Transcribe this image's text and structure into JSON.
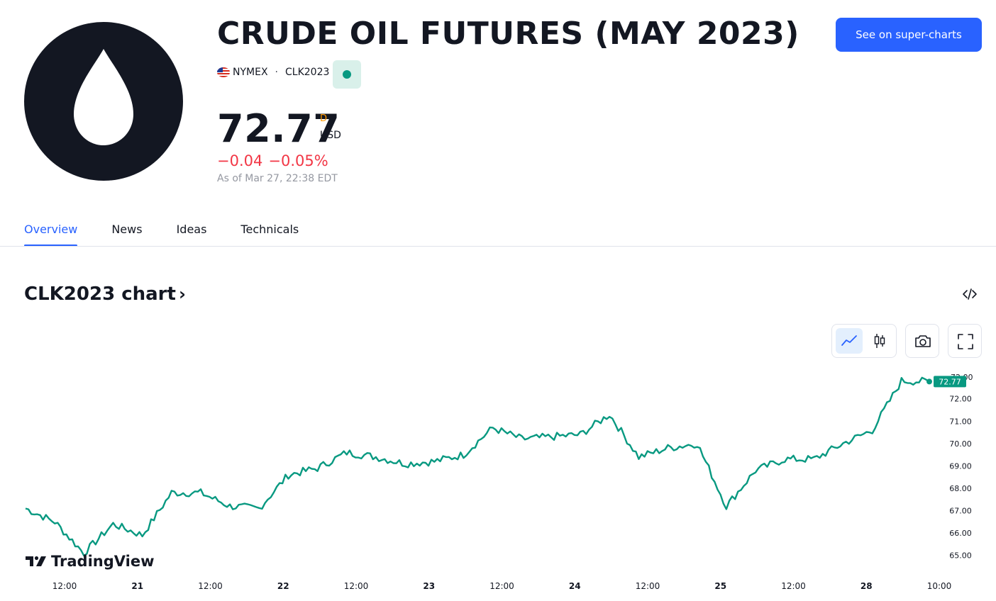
{
  "header": {
    "title": "CRUDE OIL FUTURES (MAY 2023)",
    "exchange": "NYMEX",
    "separator": "·",
    "symbol": "CLK2023",
    "cta_label": "See on super-charts"
  },
  "quote": {
    "price": "72.77",
    "timeframe_marker": "D",
    "currency": "USD",
    "change_abs": "−0.04",
    "change_pct": "−0.05%",
    "as_of": "As of Mar 27, 22:38 EDT"
  },
  "tabs": [
    {
      "label": "Overview",
      "active": true
    },
    {
      "label": "News",
      "active": false
    },
    {
      "label": "Ideas",
      "active": false
    },
    {
      "label": "Technicals",
      "active": false
    }
  ],
  "chart_section": {
    "title": "CLK2023 chart",
    "chevron": "›",
    "brand": "TradingView"
  },
  "colors": {
    "line": "#089981",
    "negative": "#f23645",
    "accent": "#2962ff",
    "delayed": "#ff9800"
  },
  "chart_data": {
    "type": "line",
    "series": [
      {
        "x": [
          "20 09:00",
          "20 12:00",
          "20 15:00",
          "20 18:00",
          "21 00:00",
          "21 06:00",
          "21 12:00",
          "21 18:00",
          "22 00:00",
          "22 06:00",
          "22 12:00",
          "22 18:00",
          "23 00:00",
          "23 03:00",
          "23 06:00",
          "23 12:00",
          "23 18:00",
          "24 00:00",
          "24 03:00",
          "24 06:00",
          "24 12:00",
          "24 18:00",
          "25 00:00",
          "25 03:00",
          "25 06:00",
          "25 12:00",
          "25 18:00",
          "27 20:00",
          "28 00:00",
          "28 03:00",
          "28 06:00",
          "28 10:00"
        ],
        "values": [
          67.1,
          66.5,
          65.1,
          66.4,
          65.9,
          67.8,
          67.8,
          67.2,
          67.1,
          68.6,
          68.9,
          69.6,
          69.4,
          69.1,
          69.2,
          69.5,
          70.7,
          70.2,
          70.3,
          70.4,
          71.3,
          69.4,
          69.8,
          70.0,
          67.2,
          68.8,
          69.3,
          69.3,
          70.0,
          70.6,
          72.8,
          72.77
        ]
      }
    ],
    "x_tick_labels": [
      "12:00",
      "21",
      "12:00",
      "22",
      "12:00",
      "23",
      "12:00",
      "24",
      "12:00",
      "25",
      "12:00",
      "28",
      "10:00"
    ],
    "y_tick_labels": [
      "72.00",
      "71.00",
      "70.00",
      "69.00",
      "68.00",
      "67.00",
      "66.00",
      "65.00"
    ],
    "y_top_label": "72.00",
    "last_value_label": "72.77",
    "ylim": [
      64.8,
      73.1
    ],
    "grid": false
  }
}
